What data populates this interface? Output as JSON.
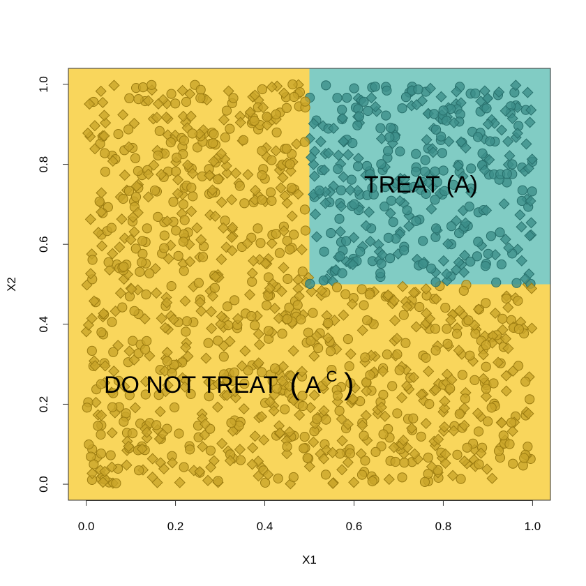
{
  "chart_data": {
    "type": "scatter",
    "title": "",
    "xlabel": "X1",
    "ylabel": "X2",
    "xlim": [
      -0.04,
      1.04
    ],
    "ylim": [
      -0.04,
      1.04
    ],
    "x_ticks": [
      "0.0",
      "0.2",
      "0.4",
      "0.6",
      "0.8",
      "1.0"
    ],
    "y_ticks": [
      "0.0",
      "0.2",
      "0.4",
      "0.6",
      "0.8",
      "1.0"
    ],
    "grid": false,
    "legend": "none",
    "regions": [
      {
        "label": "TREAT (A)",
        "x_range": [
          0.5,
          1.04
        ],
        "y_range": [
          0.5,
          1.04
        ],
        "color": "#81ccc4"
      },
      {
        "label_main": "DO NOT TREAT",
        "label_sup_base": "A",
        "label_sup": "C",
        "color": "#f9d65c"
      }
    ],
    "point_colors": {
      "outside_fill": "#c9a529",
      "outside_stroke": "#9c7c10",
      "inside_fill": "#3c8f8a",
      "inside_stroke": "#27706c"
    },
    "marker_shapes": [
      "circle",
      "diamond"
    ],
    "n_points": 1400,
    "sampling": "uniform on [0,1] x [0,1]"
  }
}
